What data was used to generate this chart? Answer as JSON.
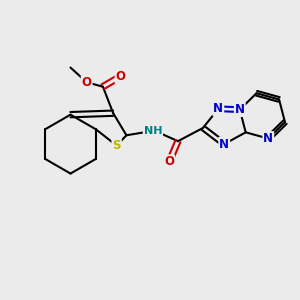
{
  "background_color": "#ebebeb",
  "figsize": [
    3.0,
    3.0
  ],
  "dpi": 100,
  "bond_color": "#000000",
  "S_color": "#b8b800",
  "N_color": "#0000cc",
  "O_color": "#cc0000",
  "NH_color": "#008080",
  "lw": 1.5,
  "fs": 8.5,
  "xlim": [
    0,
    10
  ],
  "ylim": [
    0,
    10
  ]
}
